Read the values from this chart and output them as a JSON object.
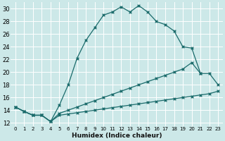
{
  "xlabel": "Humidex (Indice chaleur)",
  "bg_color": "#cce8e8",
  "grid_color": "#ffffff",
  "line_color": "#1a6b6b",
  "xlim": [
    -0.5,
    23.5
  ],
  "ylim": [
    11.5,
    31.0
  ],
  "xticks": [
    0,
    1,
    2,
    3,
    4,
    5,
    6,
    7,
    8,
    9,
    10,
    11,
    12,
    13,
    14,
    15,
    16,
    17,
    18,
    19,
    20,
    21,
    22,
    23
  ],
  "yticks": [
    12,
    14,
    16,
    18,
    20,
    22,
    24,
    26,
    28,
    30
  ],
  "line1_x": [
    0,
    1,
    2,
    3,
    4,
    5,
    6,
    7,
    8,
    9,
    10,
    11,
    12,
    13,
    14,
    15,
    16,
    17,
    18,
    19,
    20,
    21
  ],
  "line1_y": [
    14.5,
    13.8,
    13.2,
    13.2,
    12.2,
    14.8,
    18.0,
    22.2,
    25.0,
    27.0,
    29.0,
    29.5,
    30.3,
    29.5,
    30.5,
    29.5,
    28.0,
    27.5,
    26.5,
    24.0,
    23.8,
    19.8
  ],
  "line2_x": [
    0,
    1,
    2,
    3,
    4,
    5,
    6,
    7,
    8,
    9,
    10,
    11,
    12,
    13,
    14,
    15,
    16,
    17,
    18,
    19,
    20,
    21,
    22,
    23
  ],
  "line2_y": [
    14.5,
    13.8,
    13.2,
    13.2,
    12.2,
    13.5,
    14.0,
    14.5,
    15.0,
    15.5,
    16.0,
    16.5,
    17.0,
    17.5,
    18.0,
    18.5,
    19.0,
    19.5,
    20.0,
    20.5,
    21.5,
    19.8,
    19.8,
    18.0
  ],
  "line3_x": [
    0,
    1,
    2,
    3,
    4,
    5,
    6,
    7,
    8,
    9,
    10,
    11,
    12,
    13,
    14,
    15,
    16,
    17,
    18,
    19,
    20,
    21,
    22,
    23
  ],
  "line3_y": [
    14.5,
    13.8,
    13.2,
    13.2,
    12.2,
    13.2,
    13.4,
    13.6,
    13.8,
    14.0,
    14.2,
    14.4,
    14.6,
    14.8,
    15.0,
    15.2,
    15.4,
    15.6,
    15.8,
    16.0,
    16.2,
    16.4,
    16.6,
    17.0
  ]
}
